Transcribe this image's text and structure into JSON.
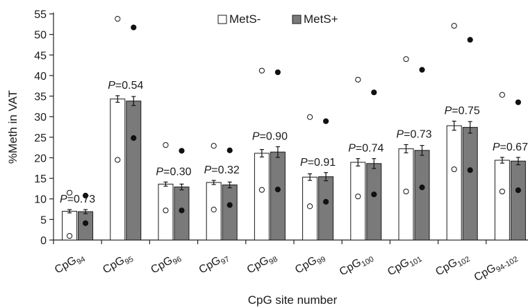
{
  "chart_data": {
    "type": "bar",
    "title": "",
    "ylabel": "%Meth in VAT",
    "xlabel": "CpG site number",
    "ylim": [
      0,
      55
    ],
    "yticks": [
      0,
      5,
      10,
      15,
      20,
      25,
      30,
      35,
      40,
      45,
      50,
      55
    ],
    "grid": false,
    "legend_position": "top",
    "categories": [
      {
        "base": "CpG",
        "sub": "94"
      },
      {
        "base": "CpG",
        "sub": "95"
      },
      {
        "base": "CpG",
        "sub": "96"
      },
      {
        "base": "CpG",
        "sub": "97"
      },
      {
        "base": "CpG",
        "sub": "98"
      },
      {
        "base": "CpG",
        "sub": "99"
      },
      {
        "base": "CpG",
        "sub": "100"
      },
      {
        "base": "CpG",
        "sub": "101"
      },
      {
        "base": "CpG",
        "sub": "102"
      },
      {
        "base": "CpG",
        "sub": "94-102"
      }
    ],
    "series": [
      {
        "name": "MetS-",
        "color": "#ffffff",
        "values": [
          7.0,
          34.3,
          13.6,
          14.0,
          21.1,
          15.3,
          18.9,
          22.2,
          27.8,
          19.4
        ],
        "errors": [
          0.4,
          0.8,
          0.5,
          0.5,
          0.9,
          0.8,
          0.9,
          1.0,
          1.1,
          0.7
        ],
        "max": [
          11.5,
          53.8,
          23.1,
          22.9,
          41.2,
          29.9,
          39.0,
          44.0,
          52.1,
          35.3
        ],
        "min": [
          1.0,
          19.5,
          7.2,
          7.4,
          12.2,
          8.2,
          10.6,
          11.8,
          17.2,
          11.8
        ]
      },
      {
        "name": "MetS+",
        "color": "#7a7a7a",
        "values": [
          6.9,
          33.8,
          12.9,
          13.4,
          21.4,
          15.4,
          18.6,
          21.8,
          27.4,
          19.2
        ],
        "errors": [
          0.5,
          1.1,
          0.7,
          0.7,
          1.3,
          1.0,
          1.2,
          1.2,
          1.4,
          0.9
        ],
        "max": [
          10.8,
          51.7,
          21.7,
          21.8,
          40.8,
          28.9,
          35.9,
          41.4,
          48.7,
          33.5
        ],
        "min": [
          4.1,
          24.8,
          7.2,
          8.5,
          12.3,
          9.3,
          11.1,
          12.8,
          17.0,
          12.1
        ]
      }
    ],
    "p_values": [
      "0.73",
      "0.54",
      "0.30",
      "0.32",
      "0.90",
      "0.91",
      "0.74",
      "0.73",
      "0.75",
      "0.67"
    ],
    "p_prefix": "P",
    "p_equals": "="
  }
}
